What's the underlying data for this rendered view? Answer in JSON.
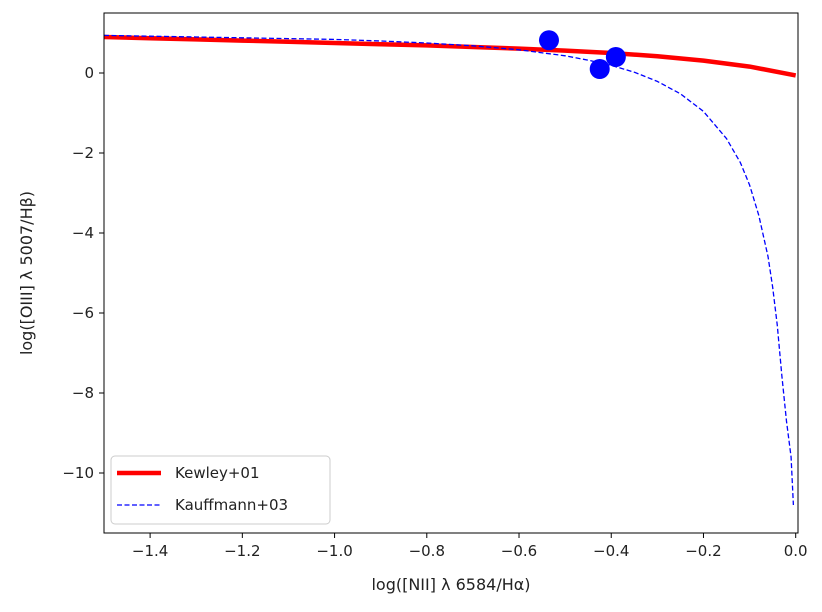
{
  "chart_data": {
    "type": "line",
    "title": "",
    "xlabel": "log([NII] λ 6584/Hα)",
    "ylabel": "log([OIII] λ 5007/Hβ)",
    "xlim": [
      -1.5,
      0.005
    ],
    "ylim": [
      -11.5,
      1.5
    ],
    "xticks": [
      -1.4,
      -1.2,
      -1.0,
      -0.8,
      -0.6,
      -0.4,
      -0.2,
      0.0
    ],
    "xtick_labels": [
      "−1.4",
      "−1.2",
      "−1.0",
      "−0.8",
      "−0.6",
      "−0.4",
      "−0.2",
      "0.0"
    ],
    "yticks": [
      0,
      -2,
      -4,
      -6,
      -8,
      -10
    ],
    "ytick_labels": [
      "0",
      "−2",
      "−4",
      "−6",
      "−8",
      "−10"
    ],
    "grid": false,
    "legend_position": "lower-left",
    "series": [
      {
        "name": "Kewley+01",
        "style": "solid",
        "color": "#ff0000",
        "x": [
          -1.5,
          -1.4,
          -1.3,
          -1.2,
          -1.1,
          -1.0,
          -0.9,
          -0.8,
          -0.7,
          -0.6,
          -0.5,
          -0.4,
          -0.3,
          -0.2,
          -0.1,
          0.0
        ],
        "y": [
          0.9,
          0.87,
          0.84,
          0.81,
          0.78,
          0.75,
          0.72,
          0.69,
          0.65,
          0.61,
          0.56,
          0.5,
          0.42,
          0.31,
          0.16,
          -0.06
        ]
      },
      {
        "name": "Kauffmann+03",
        "style": "dashed",
        "color": "#0000ff",
        "x": [
          -1.5,
          -1.4,
          -1.3,
          -1.2,
          -1.1,
          -1.0,
          -0.9,
          -0.8,
          -0.7,
          -0.6,
          -0.5,
          -0.45,
          -0.4,
          -0.35,
          -0.3,
          -0.25,
          -0.2,
          -0.15,
          -0.12,
          -0.1,
          -0.08,
          -0.06,
          -0.05,
          -0.04,
          -0.03,
          -0.02,
          -0.01,
          -0.005
        ],
        "y": [
          0.94,
          0.92,
          0.9,
          0.88,
          0.86,
          0.84,
          0.8,
          0.75,
          0.68,
          0.58,
          0.43,
          0.32,
          0.19,
          0.02,
          -0.21,
          -0.52,
          -0.96,
          -1.64,
          -2.24,
          -2.8,
          -3.56,
          -4.59,
          -5.35,
          -6.3,
          -7.57,
          -8.7,
          -9.6,
          -10.8
        ]
      }
    ],
    "points": {
      "color": "#0000ff",
      "x": [
        -0.535,
        -0.425,
        -0.39
      ],
      "y": [
        0.82,
        0.1,
        0.4
      ]
    }
  }
}
